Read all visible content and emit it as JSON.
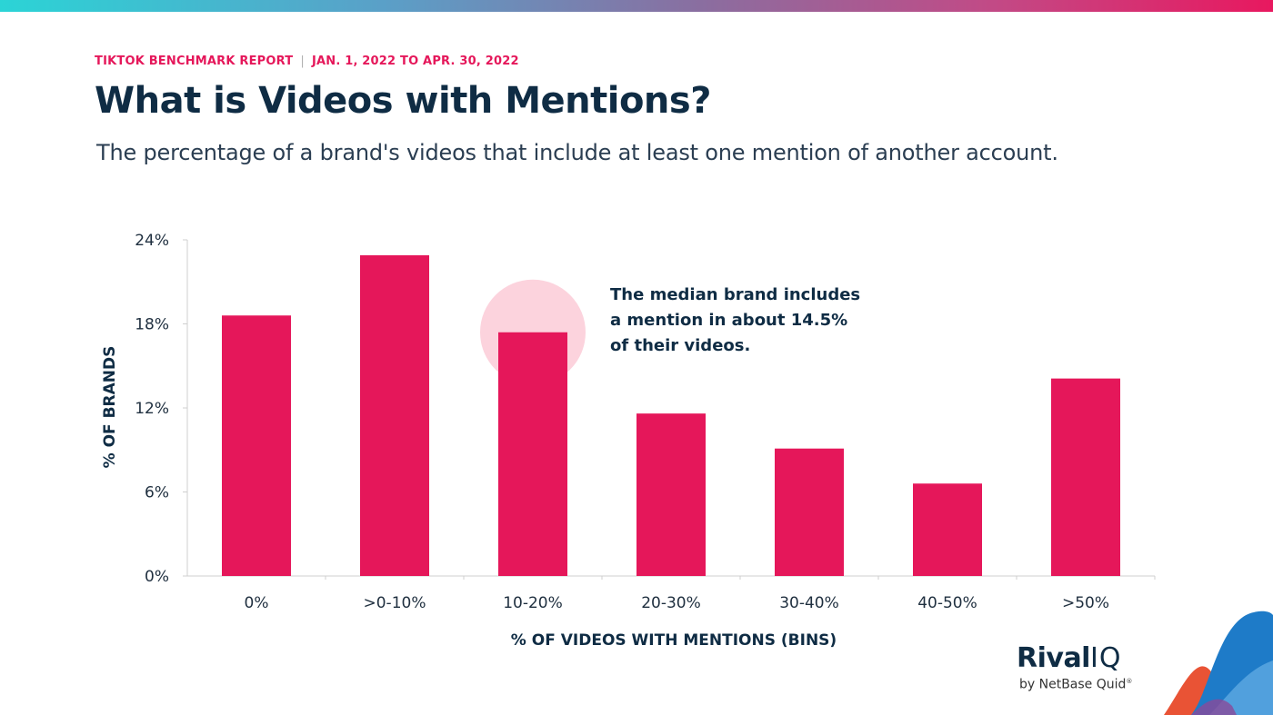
{
  "header": {
    "eyebrow_report": "TIKTOK BENCHMARK REPORT",
    "eyebrow_separator": "|",
    "eyebrow_dates": "JAN. 1, 2022 TO APR. 30, 2022",
    "title": "What is Videos with Mentions?",
    "subtitle": "The percentage of a brand's videos that include at least one mention of another account."
  },
  "chart_data": {
    "type": "bar",
    "categories": [
      "0%",
      ">0-10%",
      "10-20%",
      "20-30%",
      "30-40%",
      "40-50%",
      ">50%"
    ],
    "values": [
      18.6,
      22.9,
      17.4,
      11.6,
      9.1,
      6.6,
      14.1
    ],
    "ylim": [
      0,
      24
    ],
    "yticks": [
      0,
      6,
      12,
      18,
      24
    ],
    "ytick_labels": [
      "0%",
      "6%",
      "12%",
      "18%",
      "24%"
    ],
    "xlabel": "% OF VIDEOS WITH MENTIONS (BINS)",
    "ylabel": "% OF BRANDS",
    "grid": false,
    "legend": "none",
    "highlight_category": "10-20%",
    "annotation": [
      "The median brand includes",
      "a mention in about 14.5%",
      "of their videos."
    ],
    "colors": {
      "bar": "#e5175a",
      "highlight_circle": "#fcd3dd",
      "text": "#0f2c44",
      "axis": "#cfcfcf"
    }
  },
  "branding": {
    "logo_word": "Rival",
    "logo_iq": "IQ",
    "logo_sub": "by NetBase Quid",
    "logo_registered": "®"
  }
}
